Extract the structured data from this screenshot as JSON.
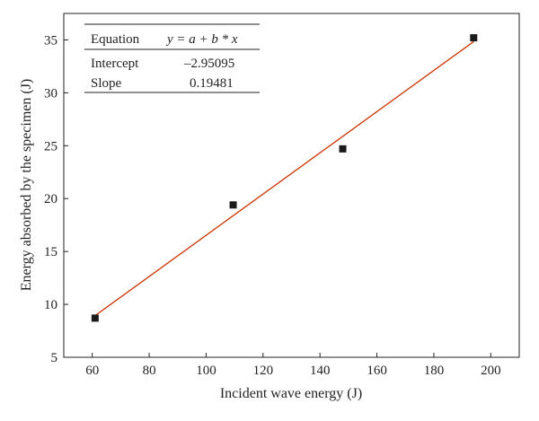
{
  "chart_data": {
    "type": "scatter",
    "xlabel": "Incident wave energy (J)",
    "ylabel": "Energy absorbed by the specimen (J)",
    "xlim": [
      50,
      210
    ],
    "ylim": [
      5,
      37.5
    ],
    "xticks": [
      60,
      80,
      100,
      120,
      140,
      160,
      180,
      200
    ],
    "yticks": [
      5,
      10,
      15,
      20,
      25,
      30,
      35
    ],
    "points": [
      {
        "x": 61.0,
        "y": 8.7
      },
      {
        "x": 109.5,
        "y": 19.4
      },
      {
        "x": 148.0,
        "y": 24.7
      },
      {
        "x": 194.0,
        "y": 35.2
      }
    ],
    "fit_line": {
      "x_start": 61.0,
      "x_end": 194.0,
      "intercept": -2.95095,
      "slope": 0.19481
    },
    "marker_color": "#1a1a1a",
    "line_color": "#cc3300",
    "table": {
      "header_label": "Equation",
      "header_value": "y = a + b * x",
      "rows": [
        {
          "label": "Intercept",
          "value": "–2.95095"
        },
        {
          "label": "Slope",
          "value": "0.19481"
        }
      ]
    }
  }
}
